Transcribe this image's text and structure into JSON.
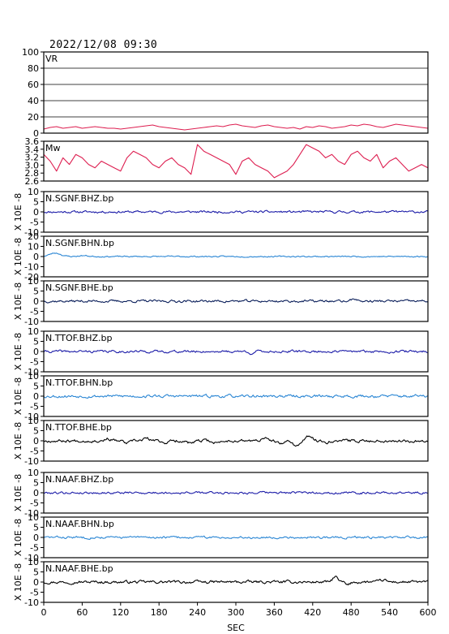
{
  "title": "2022/12/08 09:30",
  "chart_data": [
    {
      "type": "line",
      "label": "VR",
      "ylim": [
        0,
        100
      ],
      "yticks": [
        "100",
        "80",
        "60",
        "40",
        "20",
        "0"
      ],
      "grid": true,
      "color": "#dd1e50",
      "x": [
        0,
        10,
        20,
        30,
        40,
        50,
        60,
        70,
        80,
        90,
        100,
        110,
        120,
        130,
        140,
        150,
        160,
        170,
        180,
        190,
        200,
        210,
        220,
        230,
        240,
        250,
        260,
        270,
        280,
        290,
        300,
        310,
        320,
        330,
        340,
        350,
        360,
        370,
        380,
        390,
        400,
        410,
        420,
        430,
        440,
        450,
        460,
        470,
        480,
        490,
        500,
        510,
        520,
        530,
        540,
        550,
        560,
        570,
        580,
        590,
        600
      ],
      "values": [
        5,
        7,
        8,
        6,
        7,
        8,
        6,
        7,
        8,
        7,
        6,
        6,
        5,
        6,
        7,
        8,
        9,
        10,
        8,
        7,
        6,
        5,
        4,
        5,
        6,
        7,
        8,
        9,
        8,
        10,
        11,
        9,
        8,
        7,
        9,
        10,
        8,
        7,
        6,
        7,
        5,
        8,
        7,
        9,
        8,
        6,
        7,
        8,
        10,
        9,
        11,
        10,
        8,
        7,
        9,
        11,
        10,
        9,
        8,
        7,
        6
      ]
    },
    {
      "type": "line",
      "label": "Mw",
      "ylim": [
        2.5,
        3.7
      ],
      "yticks": [
        "3.6",
        "3.4",
        "3.2",
        "3.0",
        "2.8",
        "2.6"
      ],
      "color": "#dd1e50",
      "x": [
        0,
        10,
        20,
        30,
        40,
        50,
        60,
        70,
        80,
        90,
        100,
        110,
        120,
        130,
        140,
        150,
        160,
        170,
        180,
        190,
        200,
        210,
        220,
        230,
        240,
        250,
        260,
        270,
        280,
        290,
        300,
        310,
        320,
        330,
        340,
        350,
        360,
        370,
        380,
        390,
        400,
        410,
        420,
        430,
        440,
        450,
        460,
        470,
        480,
        490,
        500,
        510,
        520,
        530,
        540,
        550,
        560,
        570,
        580,
        590,
        600
      ],
      "values": [
        3.3,
        3.1,
        2.8,
        3.2,
        3.0,
        3.3,
        3.2,
        3.0,
        2.9,
        3.1,
        3.0,
        2.9,
        2.8,
        3.2,
        3.4,
        3.3,
        3.2,
        3.0,
        2.9,
        3.1,
        3.2,
        3.0,
        2.9,
        2.7,
        3.6,
        3.4,
        3.3,
        3.2,
        3.1,
        3.0,
        2.7,
        3.1,
        3.2,
        3.0,
        2.9,
        2.8,
        2.6,
        2.7,
        2.8,
        3.0,
        3.3,
        3.6,
        3.5,
        3.4,
        3.2,
        3.3,
        3.1,
        3.0,
        3.3,
        3.4,
        3.2,
        3.1,
        3.3,
        2.9,
        3.1,
        3.2,
        3.0,
        2.8,
        2.9,
        3.0,
        2.9
      ]
    },
    {
      "type": "line",
      "label": "N.SGNF.BHZ.bp",
      "ylim": [
        -10,
        10
      ],
      "yticks": [
        "10",
        "5",
        "0",
        "-5",
        "-10"
      ],
      "ylabel": "X 10E -8",
      "color": "#1c1ca8",
      "amp": 0.55,
      "seed": 11,
      "events": []
    },
    {
      "type": "line",
      "label": "N.SGNF.BHN.bp",
      "ylim": [
        -20,
        20
      ],
      "yticks": [
        "20",
        "10",
        "0",
        "-10",
        "-20"
      ],
      "ylabel": "X 10E -8",
      "color": "#2a86d4",
      "amp": 0.6,
      "seed": 23,
      "events": [
        {
          "x": 18,
          "a": 3.5,
          "w": 12
        },
        {
          "x": 62,
          "a": 0.9,
          "w": 10
        }
      ]
    },
    {
      "type": "line",
      "label": "N.SGNF.BHE.bp",
      "ylim": [
        -10,
        10
      ],
      "yticks": [
        "10",
        "5",
        "0",
        "-5",
        "-10"
      ],
      "ylabel": "X 10E -8",
      "color": "#0a1e5a",
      "amp": 0.6,
      "seed": 37,
      "events": [
        {
          "x": 485,
          "a": 1.4,
          "w": 5
        }
      ]
    },
    {
      "type": "line",
      "label": "N.TTOF.BHZ.bp",
      "ylim": [
        -10,
        10
      ],
      "yticks": [
        "10",
        "5",
        "0",
        "-5",
        "-10"
      ],
      "ylabel": "X 10E -8",
      "color": "#1c1ca8",
      "amp": 0.6,
      "seed": 41,
      "events": [
        {
          "x": 325,
          "a": -1.0,
          "w": 4
        }
      ]
    },
    {
      "type": "line",
      "label": "N.TTOF.BHN.bp",
      "ylim": [
        -10,
        10
      ],
      "yticks": [
        "10",
        "5",
        "0",
        "-5",
        "-10"
      ],
      "ylabel": "X 10E -8",
      "color": "#2a86d4",
      "amp": 0.7,
      "seed": 53,
      "events": [
        {
          "x": 305,
          "a": -0.8,
          "w": 4
        }
      ]
    },
    {
      "type": "line",
      "label": "N.TTOF.BHE.bp",
      "ylim": [
        -10,
        10
      ],
      "yticks": [
        "10",
        "5",
        "0",
        "-5",
        "-10"
      ],
      "ylabel": "X 10E -8",
      "color": "#000000",
      "amp": 0.7,
      "seed": 67,
      "events": [
        {
          "x": 100,
          "a": 1.0,
          "w": 7
        },
        {
          "x": 130,
          "a": -1.2,
          "w": 7
        },
        {
          "x": 160,
          "a": 1.1,
          "w": 7
        },
        {
          "x": 190,
          "a": -0.9,
          "w": 7
        },
        {
          "x": 230,
          "a": -1.3,
          "w": 8
        },
        {
          "x": 270,
          "a": -1.0,
          "w": 8
        },
        {
          "x": 345,
          "a": 1.0,
          "w": 8
        },
        {
          "x": 370,
          "a": -1.6,
          "w": 8
        },
        {
          "x": 395,
          "a": -2.6,
          "w": 7
        },
        {
          "x": 415,
          "a": 2.2,
          "w": 7
        },
        {
          "x": 440,
          "a": -0.8,
          "w": 6
        }
      ]
    },
    {
      "type": "line",
      "label": "N.NAAF.BHZ.bp",
      "ylim": [
        -10,
        10
      ],
      "yticks": [
        "10",
        "5",
        "0",
        "-5",
        "-10"
      ],
      "ylabel": "X 10E -8",
      "color": "#1c1ca8",
      "amp": 0.55,
      "seed": 79,
      "events": []
    },
    {
      "type": "line",
      "label": "N.NAAF.BHN.bp",
      "ylim": [
        -10,
        10
      ],
      "yticks": [
        "10",
        "5",
        "0",
        "-5",
        "-10"
      ],
      "ylabel": "X 10E -8",
      "color": "#2a86d4",
      "amp": 0.55,
      "seed": 83,
      "events": [
        {
          "x": 485,
          "a": 0.9,
          "w": 5
        }
      ]
    },
    {
      "type": "line",
      "label": "N.NAAF.BHE.bp",
      "ylim": [
        -10,
        10
      ],
      "yticks": [
        "10",
        "5",
        "0",
        "-5",
        "-10"
      ],
      "ylabel": "X 10E -8",
      "color": "#000000",
      "amp": 0.7,
      "seed": 97,
      "events": [
        {
          "x": 455,
          "a": 2.8,
          "w": 5
        },
        {
          "x": 475,
          "a": -1.6,
          "w": 5
        },
        {
          "x": 530,
          "a": 1.0,
          "w": 6
        }
      ]
    }
  ],
  "xaxis": {
    "label": "SEC",
    "xlim": [
      0,
      600
    ],
    "ticks": [
      0,
      60,
      120,
      180,
      240,
      300,
      360,
      420,
      480,
      540,
      600
    ]
  }
}
